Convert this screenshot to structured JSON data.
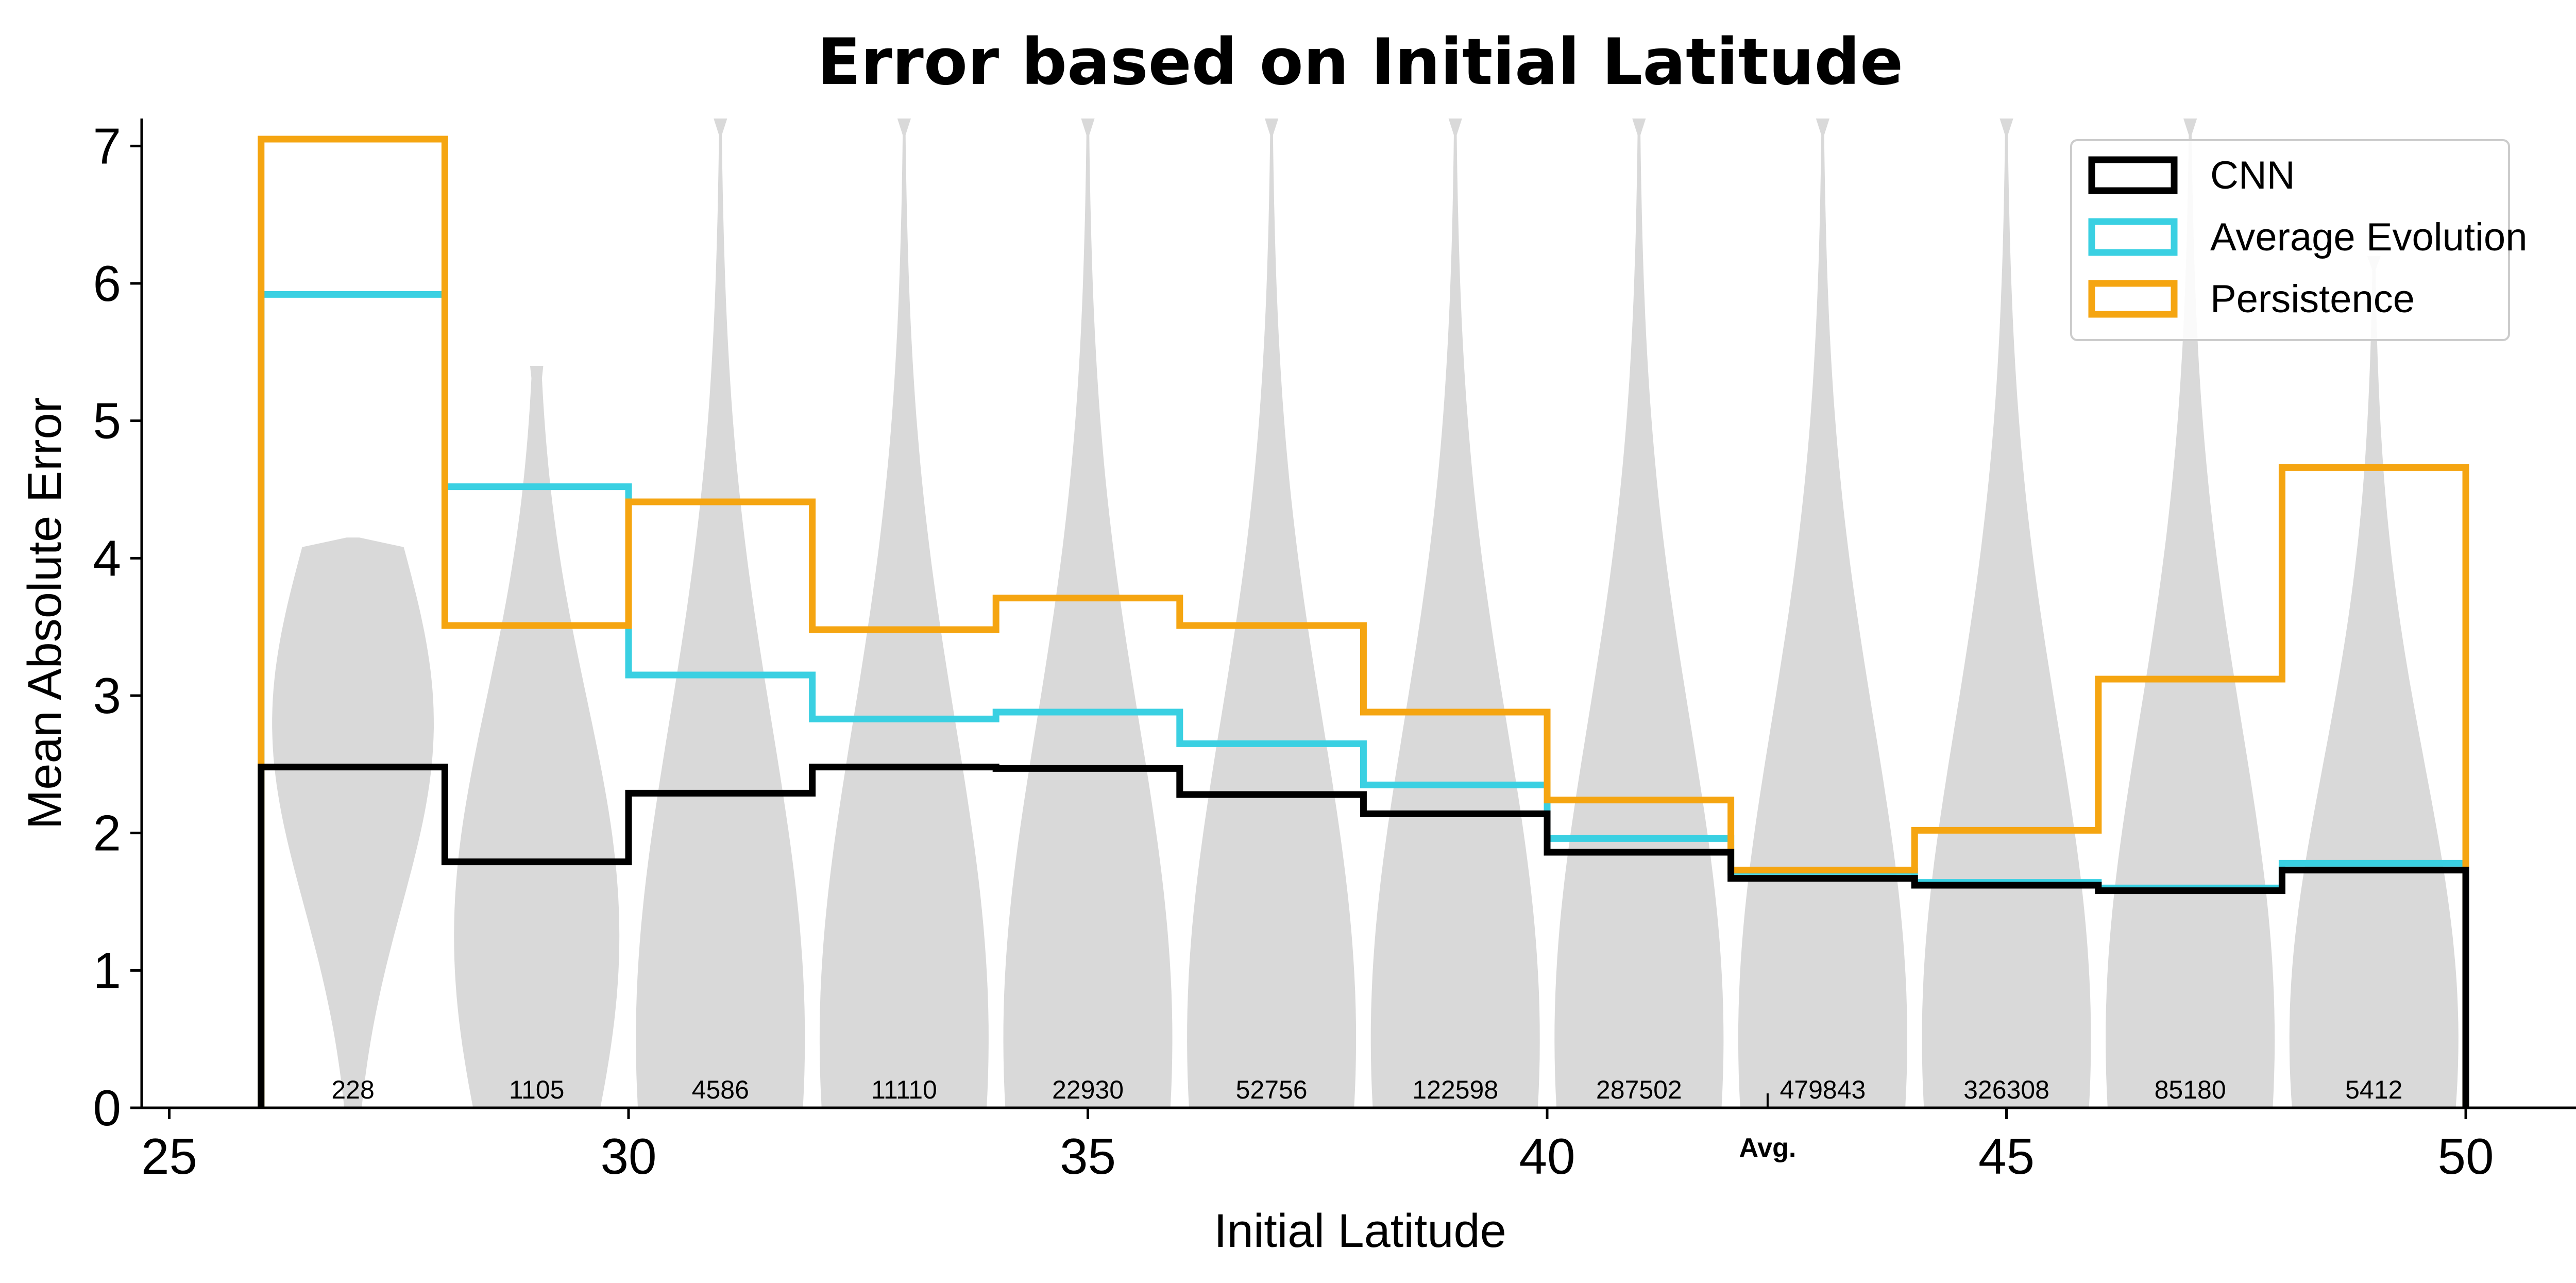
{
  "chart_data": {
    "type": "line",
    "title": "Error based on Initial Latitude",
    "xlabel": "Initial Latitude",
    "ylabel": "Mean Absolute Error",
    "xlim": [
      24.7,
      51.2
    ],
    "ylim": [
      0,
      7.2
    ],
    "xticks": [
      25,
      30,
      35,
      40,
      45,
      50
    ],
    "yticks": [
      0,
      1,
      2,
      3,
      4,
      5,
      6,
      7
    ],
    "avg_marker": {
      "x": 42.4,
      "label": "Avg."
    },
    "legend_position": "top-right",
    "bin_edges": [
      26,
      28,
      30,
      32,
      34,
      36,
      38,
      40,
      42,
      44,
      46,
      48,
      50
    ],
    "bin_counts": [
      "228",
      "1105",
      "4586",
      "11110",
      "22930",
      "52756",
      "122598",
      "287502",
      "479843",
      "326308",
      "85180",
      "5412"
    ],
    "series": [
      {
        "name": "CNN",
        "color": "#000000",
        "values": [
          2.48,
          1.79,
          2.29,
          2.48,
          2.47,
          2.28,
          2.14,
          1.86,
          1.67,
          1.62,
          1.58,
          1.73
        ]
      },
      {
        "name": "Average Evolution",
        "color": "#3ad0e2",
        "values": [
          5.92,
          4.52,
          3.15,
          2.83,
          2.88,
          2.65,
          2.35,
          1.96,
          1.72,
          1.64,
          1.6,
          1.78
        ]
      },
      {
        "name": "Persistence",
        "color": "#f5a511",
        "values": [
          7.05,
          3.51,
          4.41,
          3.48,
          3.71,
          3.51,
          2.88,
          2.24,
          1.73,
          2.02,
          3.12,
          4.66
        ]
      }
    ],
    "violins": {
      "color": "#d9d9d9",
      "shapes": [
        {
          "top": 4.15,
          "bottom": 0.0,
          "mode": 2.8,
          "width": 0.88
        },
        {
          "top": 5.4,
          "bottom": 0.0,
          "mode": 1.25,
          "width": 0.9
        },
        {
          "top": 7.2,
          "bottom": 0.0,
          "mode": 0.5,
          "width": 0.92
        },
        {
          "top": 7.2,
          "bottom": 0.0,
          "mode": 0.5,
          "width": 0.92
        },
        {
          "top": 7.2,
          "bottom": 0.0,
          "mode": 0.5,
          "width": 0.92
        },
        {
          "top": 7.2,
          "bottom": 0.0,
          "mode": 0.5,
          "width": 0.92
        },
        {
          "top": 7.2,
          "bottom": 0.0,
          "mode": 0.5,
          "width": 0.92
        },
        {
          "top": 7.2,
          "bottom": 0.0,
          "mode": 0.5,
          "width": 0.92
        },
        {
          "top": 7.2,
          "bottom": 0.0,
          "mode": 0.5,
          "width": 0.92
        },
        {
          "top": 7.2,
          "bottom": 0.0,
          "mode": 0.5,
          "width": 0.92
        },
        {
          "top": 7.2,
          "bottom": 0.0,
          "mode": 0.5,
          "width": 0.92
        },
        {
          "top": 6.2,
          "bottom": 0.0,
          "mode": 0.5,
          "width": 0.92
        }
      ]
    }
  }
}
